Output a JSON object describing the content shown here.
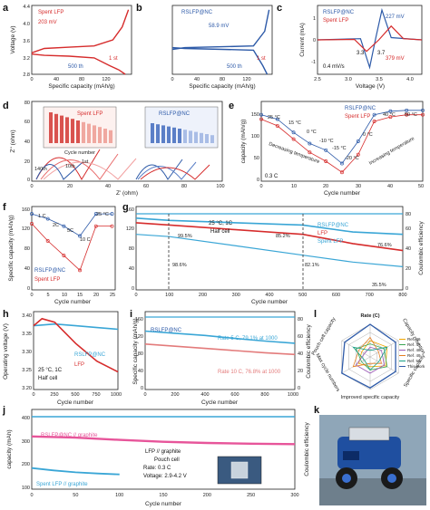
{
  "panels": {
    "a": {
      "letter": "a",
      "xlabel": "Specific capacity (mAh/g)",
      "ylabel": "Voltage (v)",
      "xticks": [
        "0",
        "40",
        "80",
        "120"
      ],
      "yticks": [
        "2.8",
        "3.2",
        "3.6",
        "4.0",
        "4.4"
      ],
      "legend": "Spent LFP",
      "ann_mv": "203 mV",
      "ann_cycle500": "500 th",
      "ann_cycle1": "1 st"
    },
    "b": {
      "letter": "b",
      "xlabel": "Specific capacity (mAh/g)",
      "xticks": [
        "0",
        "40",
        "80",
        "120"
      ],
      "legend": "RSLFP@NC",
      "ann_mv": "58.9 mV",
      "ann_cycle500": "500 th",
      "ann_cycle1": "1 st"
    },
    "c": {
      "letter": "c",
      "xlabel": "Voltage (V)",
      "ylabel": "Current (mA)",
      "xticks": [
        "2.5",
        "3.0",
        "3.5",
        "4.0"
      ],
      "yticks": [
        "-1",
        "0",
        "1"
      ],
      "legend1": "RSLFP@NC",
      "legend2": "Spent LFP",
      "ann_227": "227 mV",
      "ann_379": "379 mV",
      "rate": "0.4 mV/s",
      "ann_33": "3.3",
      "ann_37": "3.7"
    },
    "d": {
      "letter": "d",
      "xlabel": "Z' (ohm)",
      "ylabel": "Z'' (ohm)",
      "xticks": [
        "0",
        "20",
        "40",
        "60",
        "80",
        "100"
      ],
      "yticks": [
        "0",
        "20",
        "40",
        "60",
        "80"
      ],
      "title_left": "Spent LFP",
      "title_right": "RSLFP@NC",
      "inset_xlabel": "Cycle number",
      "inset_ylabel": "Rct (ohm)",
      "c1": "1st",
      "c10": "10th",
      "c140": "140th"
    },
    "e": {
      "letter": "e",
      "xlabel": "Cycle number",
      "ylabel": "capacity (mAh/g)",
      "xticks": [
        "0",
        "10",
        "20",
        "30",
        "40",
        "50"
      ],
      "yticks": [
        "0",
        "50",
        "100",
        "150"
      ],
      "legend1": "RSLFP@NC",
      "legend2": "Spent LFP",
      "rate": "0.3 C",
      "dec": "Decreasing temperature",
      "inc": "Increasing temperature",
      "temps": [
        "25 °C",
        "15 °C",
        "0 °C",
        "-10 °C",
        "-15 °C",
        "-20 °C",
        "0 °C",
        "40 °C",
        "50 °C"
      ]
    },
    "f": {
      "letter": "f",
      "xlabel": "Cycle number",
      "ylabel": "Specific capacity (mAh/g)",
      "xticks": [
        "0",
        "5",
        "10",
        "15",
        "20",
        "25"
      ],
      "yticks": [
        "0",
        "40",
        "80",
        "120",
        "160"
      ],
      "legend1": "RSLFP@NC",
      "legend2": "Spent LFP",
      "rates": [
        "1 C",
        "2C",
        "5C",
        "10 C",
        "25 °C"
      ]
    },
    "g": {
      "letter": "g",
      "xlabel": "Cycle number",
      "ylabel2": "Coulombic efficiency",
      "xticks": [
        "0",
        "100",
        "200",
        "300",
        "400",
        "500",
        "600",
        "700",
        "800"
      ],
      "yticks": [
        "0",
        "40",
        "80",
        "120",
        "160"
      ],
      "y2ticks": [
        "0",
        "20",
        "40",
        "60",
        "80"
      ],
      "cond1": "25 °C, 1C",
      "cond2": "Half cell",
      "legend1": "RSLFP@NC",
      "legend2": "LFP",
      "legend3": "Spent LFP",
      "p995": "99.5%",
      "p852": "85.2%",
      "p766": "76.6%",
      "p986": "98.6%",
      "p821": "82.1%",
      "p355": "35.5%"
    },
    "h": {
      "letter": "h",
      "xlabel": "Cycle number",
      "ylabel": "Operating voltage (V)",
      "xticks": [
        "0",
        "250",
        "500",
        "750",
        "1000"
      ],
      "yticks": [
        "3.20",
        "3.25",
        "3.30",
        "3.35",
        "3.40"
      ],
      "legend1": "RSLFP@NC",
      "legend2": "LFP",
      "cond1": "25 °C, 1C",
      "cond2": "Half cell"
    },
    "i": {
      "letter": "i",
      "xlabel": "Cycle number",
      "ylabel": "Specific capacity (mAh/g)",
      "ylabel2": "Coulombic efficiency",
      "xticks": [
        "0",
        "200",
        "400",
        "600",
        "800",
        "1000"
      ],
      "yticks": [
        "0",
        "40",
        "80",
        "120",
        "160"
      ],
      "y2ticks": [
        "0",
        "20",
        "40",
        "60",
        "80"
      ],
      "legend": "RSLFP@NC",
      "rate5": "Rate 5 C, 79.1% at 1000",
      "rate10": "Rate 10 C, 76.8% at 1000"
    },
    "l": {
      "letter": "l",
      "title": "Rate (C)",
      "axes": [
        "Rate (C)",
        "Capacity retention",
        "Specific capacity",
        "Improved specific capacity",
        "Max cycle numbers",
        "Pouch cell capacity"
      ],
      "legend": [
        "Ref. 46",
        "Ref. 47",
        "Ref. 48",
        "Ref. 49",
        "Ref. 50",
        "This work"
      ]
    },
    "j": {
      "letter": "j",
      "xlabel": "Cycle number",
      "ylabel": "capacity (mAh)",
      "ylabel2": "Coulombic efficiency",
      "xticks": [
        "0",
        "50",
        "100",
        "150",
        "200",
        "250",
        "300"
      ],
      "yticks": [
        "100",
        "200",
        "300",
        "400"
      ],
      "legend1": "RSLFP@NC // graphite",
      "legend2": "Spent LFP // graphite",
      "info1": "LFP // graphite",
      "info2": "Pouch cell",
      "info3": "Rate: 0.3 C",
      "info4": "Voltage: 2.9-4.2 V"
    },
    "k": {
      "letter": "k"
    }
  },
  "chart_data": [
    {
      "type": "line",
      "panel": "a",
      "xlim": [
        0,
        160
      ],
      "ylim": [
        2.8,
        4.4
      ],
      "series": [
        {
          "name": "Spent LFP",
          "x": [
            0,
            20,
            60,
            100,
            130,
            145,
            155
          ],
          "y": [
            3.3,
            3.4,
            3.43,
            3.46,
            3.6,
            3.9,
            4.3
          ]
        },
        {
          "name": "Spent LFP",
          "x": [
            0,
            20,
            60,
            100,
            125,
            140,
            150
          ],
          "y": [
            3.27,
            3.24,
            3.22,
            3.18,
            3.0,
            2.9,
            2.8
          ]
        }
      ]
    },
    {
      "type": "line",
      "panel": "b",
      "xlim": [
        0,
        160
      ],
      "ylim": [
        2.8,
        4.4
      ],
      "series": [
        {
          "name": "RSLFP@NC",
          "x": [
            0,
            20,
            80,
            130,
            148,
            155
          ],
          "y": [
            3.38,
            3.42,
            3.44,
            3.46,
            3.8,
            4.3
          ]
        },
        {
          "name": "RSLFP@NC",
          "x": [
            0,
            20,
            80,
            130,
            145,
            152
          ],
          "y": [
            3.42,
            3.4,
            3.38,
            3.36,
            3.0,
            2.8
          ]
        }
      ]
    },
    {
      "type": "line",
      "panel": "c",
      "xlim": [
        2.5,
        4.2
      ],
      "ylim": [
        -1.5,
        1.5
      ],
      "series": [
        {
          "name": "RSLFP@NC",
          "x": [
            2.5,
            3.2,
            3.35,
            3.45,
            3.55,
            3.7,
            4.2
          ],
          "y": [
            0,
            0.05,
            -1.2,
            0.1,
            1.3,
            0.1,
            0
          ]
        },
        {
          "name": "Spent LFP",
          "x": [
            2.5,
            3.1,
            3.3,
            3.5,
            3.7,
            3.9,
            4.2
          ],
          "y": [
            0,
            0.02,
            -0.5,
            0,
            0.6,
            0.05,
            0
          ]
        }
      ]
    },
    {
      "type": "line",
      "panel": "e",
      "xlim": [
        0,
        50
      ],
      "ylim": [
        0,
        180
      ],
      "series": [
        {
          "name": "RSLFP@NC",
          "x": [
            0,
            5,
            10,
            15,
            20,
            25,
            30,
            35,
            40,
            45,
            50
          ],
          "y": [
            150,
            140,
            110,
            85,
            70,
            40,
            90,
            150,
            158,
            160,
            160
          ]
        },
        {
          "name": "Spent LFP",
          "x": [
            0,
            5,
            10,
            15,
            20,
            25,
            30,
            35,
            40,
            45,
            50
          ],
          "y": [
            140,
            125,
            95,
            65,
            45,
            20,
            60,
            135,
            145,
            150,
            150
          ]
        }
      ]
    },
    {
      "type": "line",
      "panel": "f",
      "xlim": [
        0,
        26
      ],
      "ylim": [
        0,
        170
      ],
      "series": [
        {
          "name": "RSLFP@NC",
          "x": [
            0,
            5,
            10,
            15,
            20,
            25
          ],
          "y": [
            155,
            145,
            130,
            110,
            155,
            155
          ]
        },
        {
          "name": "Spent LFP",
          "x": [
            0,
            5,
            10,
            15,
            20,
            25
          ],
          "y": [
            135,
            100,
            70,
            40,
            130,
            130
          ]
        }
      ]
    },
    {
      "type": "line",
      "panel": "g",
      "xlim": [
        0,
        800
      ],
      "ylim": [
        0,
        180
      ],
      "series": [
        {
          "name": "RSLFP@NC",
          "x": [
            0,
            100,
            300,
            500,
            650,
            800
          ],
          "y": [
            155,
            150,
            145,
            140,
            125,
            120
          ]
        },
        {
          "name": "LFP",
          "x": [
            0,
            100,
            300,
            500,
            650,
            800
          ],
          "y": [
            145,
            140,
            130,
            120,
            100,
            85
          ]
        },
        {
          "name": "Spent LFP",
          "x": [
            0,
            100,
            300,
            500,
            650,
            800
          ],
          "y": [
            120,
            115,
            95,
            75,
            60,
            50
          ]
        }
      ]
    },
    {
      "type": "line",
      "panel": "h",
      "xlim": [
        0,
        1000
      ],
      "ylim": [
        3.2,
        3.42
      ],
      "series": [
        {
          "name": "RSLFP@NC",
          "x": [
            0,
            250,
            500,
            750,
            1000
          ],
          "y": [
            3.38,
            3.385,
            3.38,
            3.375,
            3.37
          ]
        },
        {
          "name": "LFP",
          "x": [
            0,
            100,
            250,
            500,
            750,
            1000
          ],
          "y": [
            3.38,
            3.4,
            3.39,
            3.33,
            3.28,
            3.25
          ]
        }
      ]
    },
    {
      "type": "line",
      "panel": "i",
      "xlim": [
        0,
        1000
      ],
      "ylim": [
        0,
        180
      ],
      "series": [
        {
          "name": "Rate 5 C",
          "x": [
            0,
            200,
            400,
            600,
            800,
            1000
          ],
          "y": [
            135,
            130,
            125,
            118,
            112,
            107
          ]
        },
        {
          "name": "Rate 10 C",
          "x": [
            0,
            200,
            400,
            600,
            800,
            1000
          ],
          "y": [
            105,
            100,
            95,
            90,
            85,
            81
          ]
        }
      ]
    },
    {
      "type": "line",
      "panel": "j",
      "xlim": [
        0,
        300
      ],
      "ylim": [
        80,
        420
      ],
      "series": [
        {
          "name": "RSLFP@NC // graphite",
          "x": [
            0,
            50,
            100,
            150,
            200,
            250,
            300
          ],
          "y": [
            305,
            300,
            290,
            282,
            277,
            274,
            272
          ]
        },
        {
          "name": "Spent LFP // graphite",
          "x": [
            0,
            25,
            50,
            75,
            100
          ],
          "y": [
            170,
            160,
            152,
            147,
            143
          ]
        }
      ]
    }
  ],
  "colors": {
    "blue": "#2d5aa8",
    "red": "#d62c2c",
    "cyan": "#3aa6d6",
    "pink": "#e7559a",
    "gray": "#888888"
  }
}
